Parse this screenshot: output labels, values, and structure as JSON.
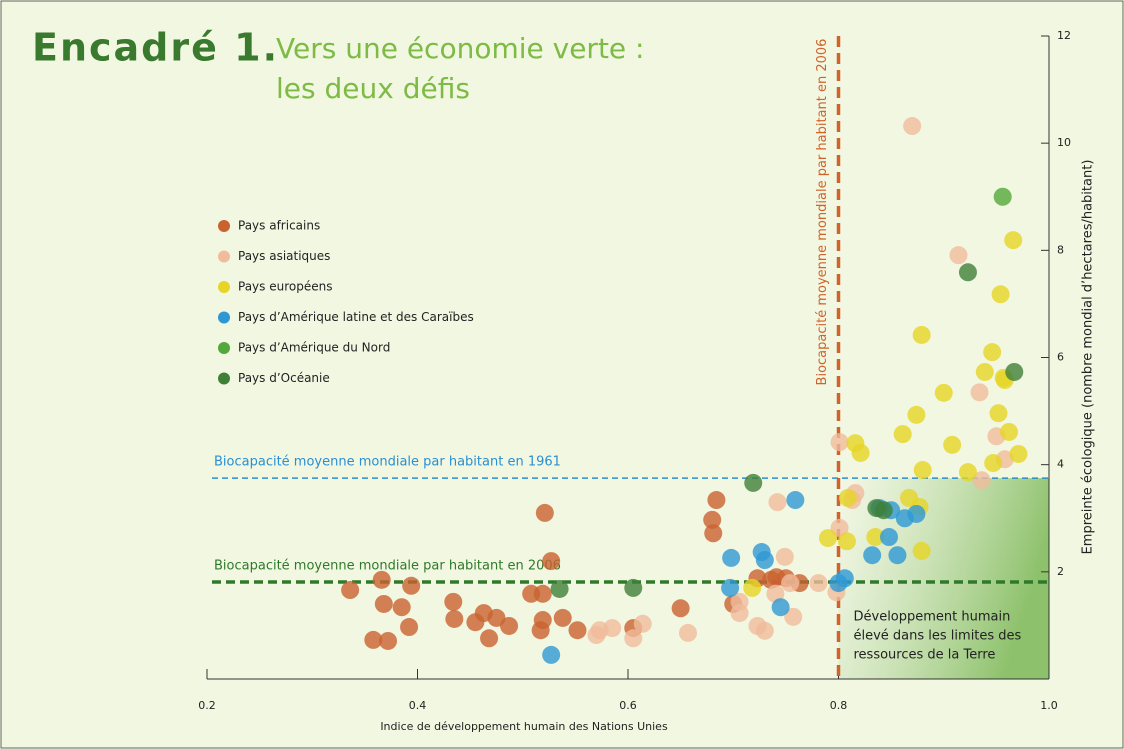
{
  "chart_data": {
    "type": "scatter",
    "title": "Encadré 1.",
    "subtitle": [
      "Vers une économie verte :",
      "les deux défis"
    ],
    "xlabel": "Indice de développement humain des Nations Unies",
    "ylabel": "Empreinte écologique (nombre mondial d’hectares/habitant)",
    "xlim": [
      0.2,
      1.0
    ],
    "xticks": [
      0.2,
      0.4,
      0.6,
      0.8,
      {
        "value": 1.0,
        "label": "1.0"
      }
    ],
    "ylim": [
      0,
      12
    ],
    "yticks": [
      2,
      4,
      6,
      8,
      10,
      12
    ],
    "reference_lines": [
      {
        "axis": "y",
        "value": 3.75,
        "label": "Biocapacité moyenne mondiale par habitant en 1961",
        "color": "#2a8fd0"
      },
      {
        "axis": "y",
        "value": 1.81,
        "label": "Biocapacité moyenne mondiale par habitant en 2006",
        "color": "#2f7a2a"
      },
      {
        "axis": "x",
        "value": 0.8,
        "label": "Biocapacité moyenne mondiale par habitant en 2006",
        "color": "#d0622a"
      }
    ],
    "annotation": [
      "Développement humain",
      "élevé dans les limites des",
      "ressources de la Terre"
    ],
    "series": [
      {
        "name": "Pays africains",
        "color": "#c9622f",
        "x": [
          0.336,
          0.366,
          0.368,
          0.385,
          0.394,
          0.358,
          0.372,
          0.392,
          0.434,
          0.435,
          0.455,
          0.463,
          0.468,
          0.475,
          0.487,
          0.508,
          0.519,
          0.521,
          0.527,
          0.519,
          0.517,
          0.538,
          0.552,
          0.605,
          0.65,
          0.684,
          0.68,
          0.681,
          0.7,
          0.723,
          0.736,
          0.741,
          0.75,
          0.763
        ],
        "values": [
          1.66,
          1.85,
          1.4,
          1.34,
          1.74,
          0.73,
          0.71,
          0.97,
          1.44,
          1.12,
          1.06,
          1.23,
          0.76,
          1.14,
          0.99,
          1.59,
          1.59,
          3.1,
          2.2,
          1.1,
          0.91,
          1.14,
          0.91,
          0.95,
          1.32,
          3.34,
          2.97,
          2.72,
          1.4,
          1.88,
          1.85,
          1.9,
          1.88,
          1.79
        ]
      },
      {
        "name": "Pays asiatiques",
        "color": "#f0bc9c",
        "x": [
          0.573,
          0.57,
          0.585,
          0.605,
          0.614,
          0.657,
          0.706,
          0.706,
          0.723,
          0.73,
          0.74,
          0.742,
          0.749,
          0.754,
          0.757,
          0.781,
          0.798,
          0.801,
          0.801,
          0.813,
          0.816,
          0.87,
          0.914,
          0.934,
          0.936,
          0.95,
          0.958
        ],
        "values": [
          0.91,
          0.82,
          0.95,
          0.76,
          1.03,
          0.86,
          1.44,
          1.23,
          0.99,
          0.9,
          1.59,
          3.3,
          2.28,
          1.79,
          1.16,
          1.79,
          1.62,
          2.82,
          4.42,
          3.34,
          3.47,
          10.32,
          7.91,
          5.35,
          3.71,
          4.53,
          4.1
        ]
      },
      {
        "name": "Pays européens",
        "color": "#e6d526",
        "x": [
          0.718,
          0.79,
          0.809,
          0.816,
          0.821,
          0.808,
          0.835,
          0.861,
          0.874,
          0.88,
          0.879,
          0.867,
          0.877,
          0.879,
          0.9,
          0.908,
          0.923,
          0.939,
          0.946,
          0.947,
          0.952,
          0.954,
          0.957,
          0.962,
          0.966,
          0.971,
          0.958
        ],
        "values": [
          1.7,
          2.63,
          3.38,
          4.4,
          4.22,
          2.57,
          2.65,
          4.57,
          4.93,
          3.9,
          2.39,
          3.38,
          3.21,
          6.42,
          5.34,
          4.37,
          3.86,
          5.73,
          6.1,
          4.03,
          4.96,
          7.18,
          5.62,
          4.61,
          8.19,
          4.2,
          5.58
        ]
      },
      {
        "name": "Pays d’Amérique latine et des Caraïbes",
        "color": "#2e98d4",
        "x": [
          0.527,
          0.698,
          0.697,
          0.727,
          0.73,
          0.759,
          0.745,
          0.8,
          0.806,
          0.832,
          0.839,
          0.848,
          0.856,
          0.863,
          0.874,
          0.85
        ],
        "values": [
          0.45,
          2.26,
          1.7,
          2.37,
          2.22,
          3.34,
          1.34,
          1.79,
          1.88,
          2.31,
          3.19,
          2.65,
          2.31,
          3.0,
          3.08,
          3.15
        ]
      },
      {
        "name": "Pays d’Amérique du Nord",
        "color": "#52a83a",
        "x": [
          0.956
        ],
        "values": [
          9.0
        ]
      },
      {
        "name": "Pays d’Océanie",
        "color": "#3f7f38",
        "x": [
          0.535,
          0.605,
          0.719,
          0.836,
          0.843,
          0.923,
          0.967
        ],
        "values": [
          1.68,
          1.7,
          3.66,
          3.19,
          3.15,
          7.59,
          5.73
        ]
      }
    ]
  }
}
